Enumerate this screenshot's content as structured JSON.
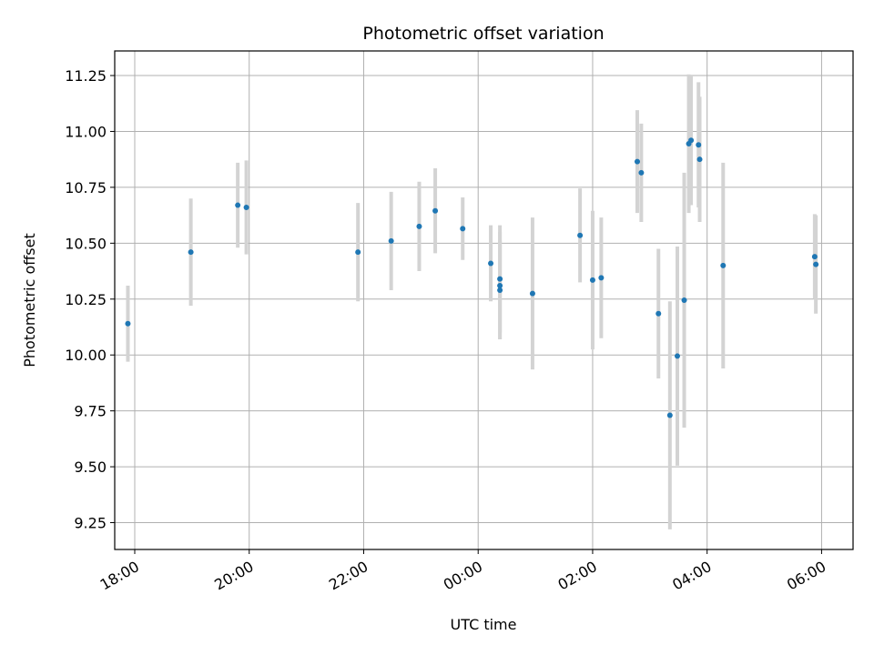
{
  "chart_data": {
    "type": "scatter",
    "title": "Photometric offset variation",
    "xlabel": "UTC time",
    "ylabel": "Photometric offset",
    "xlim": [
      -0.35,
      12.55
    ],
    "ylim": [
      9.13,
      11.36
    ],
    "grid": true,
    "x_unit": "hours since 18:00 UTC",
    "x_ticks": [
      {
        "value": 0,
        "label": "18:00"
      },
      {
        "value": 2,
        "label": "20:00"
      },
      {
        "value": 4,
        "label": "22:00"
      },
      {
        "value": 6,
        "label": "00:00"
      },
      {
        "value": 8,
        "label": "02:00"
      },
      {
        "value": 10,
        "label": "04:00"
      },
      {
        "value": 12,
        "label": "06:00"
      }
    ],
    "y_ticks": [
      {
        "value": 9.25,
        "label": "9.25"
      },
      {
        "value": 9.5,
        "label": "9.50"
      },
      {
        "value": 9.75,
        "label": "9.75"
      },
      {
        "value": 10.0,
        "label": "10.00"
      },
      {
        "value": 10.25,
        "label": "10.25"
      },
      {
        "value": 10.5,
        "label": "10.50"
      },
      {
        "value": 10.75,
        "label": "10.75"
      },
      {
        "value": 11.0,
        "label": "11.00"
      },
      {
        "value": 11.25,
        "label": "11.25"
      }
    ],
    "colors": {
      "point": "#1f77b4",
      "errorbar": "#d3d3d3",
      "grid": "#b0b0b0"
    },
    "series": [
      {
        "name": "offset",
        "points": [
          {
            "x": -0.12,
            "y": 10.14,
            "err": 0.17
          },
          {
            "x": 0.98,
            "y": 10.46,
            "err": 0.24
          },
          {
            "x": 1.8,
            "y": 10.67,
            "err": 0.19
          },
          {
            "x": 1.95,
            "y": 10.66,
            "err": 0.21
          },
          {
            "x": 3.9,
            "y": 10.46,
            "err": 0.22
          },
          {
            "x": 4.48,
            "y": 10.51,
            "err": 0.22
          },
          {
            "x": 4.97,
            "y": 10.575,
            "err": 0.2
          },
          {
            "x": 5.25,
            "y": 10.645,
            "err": 0.19
          },
          {
            "x": 5.73,
            "y": 10.565,
            "err": 0.14
          },
          {
            "x": 6.22,
            "y": 10.41,
            "err": 0.17
          },
          {
            "x": 6.38,
            "y": 10.34,
            "err": 0.24
          },
          {
            "x": 6.38,
            "y": 10.31,
            "err": 0.24
          },
          {
            "x": 6.38,
            "y": 10.29,
            "err": 0.22
          },
          {
            "x": 6.95,
            "y": 10.275,
            "err": 0.34
          },
          {
            "x": 7.78,
            "y": 10.535,
            "err": 0.21
          },
          {
            "x": 8.0,
            "y": 10.335,
            "err": 0.31
          },
          {
            "x": 8.15,
            "y": 10.345,
            "err": 0.27
          },
          {
            "x": 8.78,
            "y": 10.865,
            "err": 0.23
          },
          {
            "x": 8.85,
            "y": 10.815,
            "err": 0.22
          },
          {
            "x": 9.15,
            "y": 10.185,
            "err": 0.29
          },
          {
            "x": 9.35,
            "y": 9.73,
            "err": 0.51
          },
          {
            "x": 9.48,
            "y": 9.995,
            "err": 0.49
          },
          {
            "x": 9.6,
            "y": 10.245,
            "err": 0.57
          },
          {
            "x": 9.68,
            "y": 10.945,
            "err": 0.31
          },
          {
            "x": 9.72,
            "y": 10.96,
            "err": 0.29
          },
          {
            "x": 9.85,
            "y": 10.94,
            "err": 0.28
          },
          {
            "x": 9.87,
            "y": 10.875,
            "err": 0.28
          },
          {
            "x": 10.28,
            "y": 10.4,
            "err": 0.46
          },
          {
            "x": 11.88,
            "y": 10.44,
            "err": 0.19
          },
          {
            "x": 11.9,
            "y": 10.405,
            "err": 0.22
          }
        ]
      }
    ]
  }
}
